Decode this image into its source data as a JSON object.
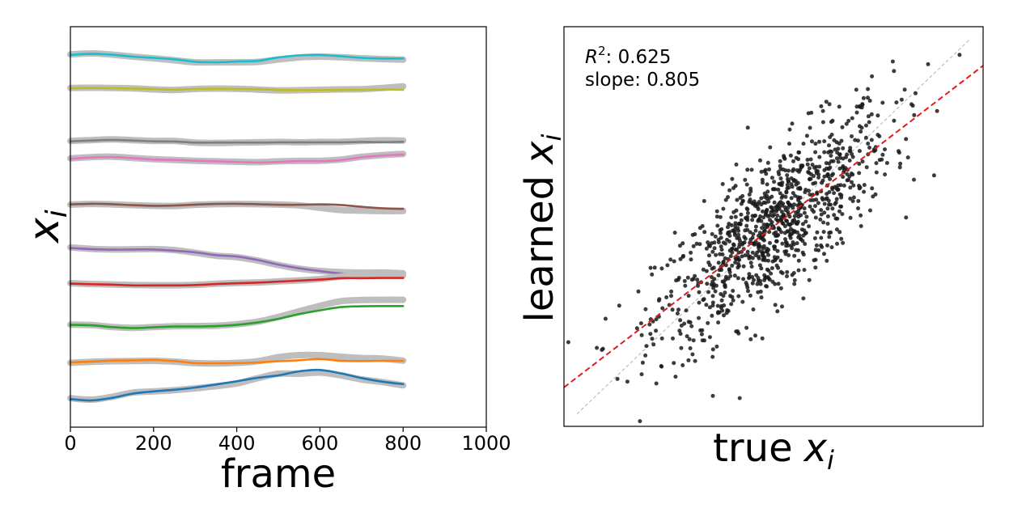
{
  "chart_data": [
    {
      "type": "line",
      "xlabel": "frame",
      "ylabel_base": "x",
      "ylabel_sub": "i",
      "xlim": [
        0,
        1000
      ],
      "xticks": [
        0,
        200,
        400,
        600,
        800,
        1000
      ],
      "yticks_shown": false,
      "x": [
        0,
        50,
        100,
        150,
        200,
        250,
        300,
        350,
        400,
        450,
        500,
        550,
        600,
        650,
        700,
        750,
        800
      ],
      "true_color": "#bebebe",
      "series": [
        {
          "color": "#17becf",
          "learned": [
            0.9,
            1.35,
            0.95,
            0.0,
            -0.6,
            -1.3,
            -2.5,
            -2.8,
            -2.4,
            -2.1,
            -0.4,
            0.6,
            0.8,
            0.2,
            -0.6,
            -0.9,
            -0.9
          ],
          "true": [
            1.1,
            1.6,
            1.0,
            0.0,
            -0.8,
            -1.8,
            -2.8,
            -2.8,
            -2.8,
            -2.6,
            -1.4,
            -0.4,
            0.0,
            -0.3,
            -0.8,
            -1.2,
            -1.5
          ]
        },
        {
          "color": "#bcbd22",
          "learned": [
            3.3,
            3.4,
            3.3,
            3.1,
            2.9,
            2.5,
            2.9,
            3.0,
            2.9,
            2.8,
            2.4,
            2.3,
            2.3,
            2.4,
            2.5,
            2.6,
            2.5
          ],
          "true": [
            3.4,
            3.5,
            3.4,
            3.2,
            2.7,
            2.4,
            2.9,
            3.1,
            3.0,
            2.6,
            2.2,
            2.3,
            2.5,
            2.7,
            2.8,
            3.4,
            4.2
          ]
        },
        {
          "color": "#7f7f7f",
          "learned": [
            -4.1,
            -3.7,
            -3.4,
            -3.7,
            -4.1,
            -4.2,
            -4.7,
            -4.7,
            -4.7,
            -4.7,
            -4.6,
            -4.6,
            -4.6,
            -4.6,
            -4.4,
            -4.5,
            -4.3
          ],
          "true": [
            -3.9,
            -3.5,
            -3.1,
            -3.5,
            -3.9,
            -3.9,
            -4.7,
            -4.9,
            -4.7,
            -4.6,
            -4.4,
            -4.6,
            -4.4,
            -4.4,
            -3.9,
            -3.6,
            -3.7
          ]
        },
        {
          "color": "#e377c2",
          "learned": [
            6.2,
            6.8,
            7.0,
            6.5,
            5.8,
            5.6,
            5.2,
            4.9,
            4.6,
            4.3,
            4.6,
            5.0,
            5.0,
            5.5,
            6.9,
            7.8,
            8.2
          ],
          "true": [
            6.4,
            7.0,
            7.2,
            6.6,
            6.0,
            5.6,
            5.2,
            4.9,
            4.7,
            4.5,
            4.9,
            5.1,
            5.2,
            5.8,
            7.1,
            8.0,
            8.6
          ]
        },
        {
          "color": "#8c564b",
          "learned": [
            2.5,
            2.8,
            2.6,
            2.1,
            1.8,
            1.9,
            2.4,
            2.7,
            2.8,
            2.6,
            2.3,
            2.3,
            2.5,
            2.2,
            1.3,
            0.6,
            0.3
          ],
          "true": [
            2.4,
            2.7,
            2.5,
            2.1,
            1.8,
            1.7,
            2.3,
            2.6,
            2.7,
            2.6,
            2.4,
            2.0,
            0.8,
            -0.3,
            -0.6,
            -0.8,
            -0.8
          ]
        },
        {
          "color": "#9467bd",
          "learned": [
            -0.2,
            -0.7,
            -1.0,
            -0.9,
            -0.9,
            -1.5,
            -2.3,
            -3.7,
            -4.4,
            -6.1,
            -8.4,
            -10.2,
            -11.6,
            -12.8,
            -13.4,
            -13.5,
            -13.4
          ],
          "true": [
            0.1,
            -0.6,
            -0.9,
            -0.8,
            -0.7,
            -1.2,
            -2.5,
            -4.0,
            -4.7,
            -6.4,
            -8.6,
            -10.4,
            -11.5,
            -12.1,
            -12.4,
            -12.3,
            -12.7
          ]
        },
        {
          "color": "#d62728",
          "learned": [
            1.1,
            0.8,
            0.6,
            0.2,
            0.2,
            0.2,
            0.4,
            0.9,
            1.3,
            1.6,
            2.1,
            2.6,
            3.1,
            3.8,
            3.8,
            3.9,
            3.9
          ],
          "true": [
            1.3,
            0.9,
            0.7,
            0.4,
            0.3,
            0.3,
            0.5,
            1.0,
            1.4,
            1.7,
            2.2,
            2.7,
            3.4,
            4.6,
            5.2,
            5.4,
            5.3
          ]
        },
        {
          "color": "#2ca02c",
          "learned": [
            -0.4,
            -0.6,
            -1.5,
            -2.0,
            -1.6,
            -1.2,
            -1.2,
            -1.0,
            -0.4,
            0.8,
            2.6,
            4.9,
            6.8,
            8.4,
            8.8,
            8.9,
            8.9
          ],
          "true": [
            -0.3,
            -0.5,
            -1.4,
            -1.9,
            -1.5,
            -1.1,
            -1.0,
            -0.8,
            -0.1,
            1.2,
            3.5,
            6.3,
            9.0,
            11.3,
            11.9,
            12.0,
            12.0
          ]
        },
        {
          "color": "#ff7f0e",
          "learned": [
            -0.1,
            0.3,
            0.8,
            0.9,
            1.1,
            0.6,
            -0.4,
            -0.5,
            -0.4,
            -0.1,
            0.5,
            1.0,
            1.6,
            0.7,
            0.6,
            0.7,
            0.7
          ],
          "true": [
            -0.3,
            0.2,
            0.5,
            0.6,
            0.7,
            0.3,
            -0.4,
            -0.6,
            -0.3,
            0.5,
            2.5,
            3.5,
            3.5,
            2.7,
            2.1,
            1.8,
            0.8
          ]
        },
        {
          "color": "#1f77b4",
          "learned": [
            0.7,
            0.0,
            1.3,
            3.4,
            4.5,
            5.3,
            6.4,
            7.9,
            9.5,
            11.2,
            12.4,
            14.4,
            15.1,
            13.4,
            11.1,
            9.3,
            8.1
          ],
          "true": [
            1.1,
            0.4,
            1.8,
            3.9,
            4.5,
            5.1,
            6.0,
            7.1,
            8.4,
            11.0,
            13.2,
            13.2,
            13.8,
            12.4,
            10.4,
            9.1,
            7.5
          ]
        }
      ]
    },
    {
      "type": "scatter",
      "xlabel_base": "true",
      "xlabel_sub": "i",
      "ylabel_base": "learned",
      "ylabel_sub": "i",
      "ticks_shown": false,
      "xlim": [
        -3.2,
        3.2
      ],
      "ylim": [
        -3.2,
        3.2
      ],
      "annotation_r2_label": "R",
      "annotation_r2_value": ": 0.625",
      "annotation_slope": "slope: 0.805",
      "r2": 0.625,
      "slope": 0.805,
      "n_points": 1000,
      "x_sd": 0.9,
      "noise_sd": 0.58,
      "point_color": "#1a1a1a",
      "fit_line_color": "#e31a1c",
      "identity_line_color": "#b0b0b0"
    }
  ]
}
